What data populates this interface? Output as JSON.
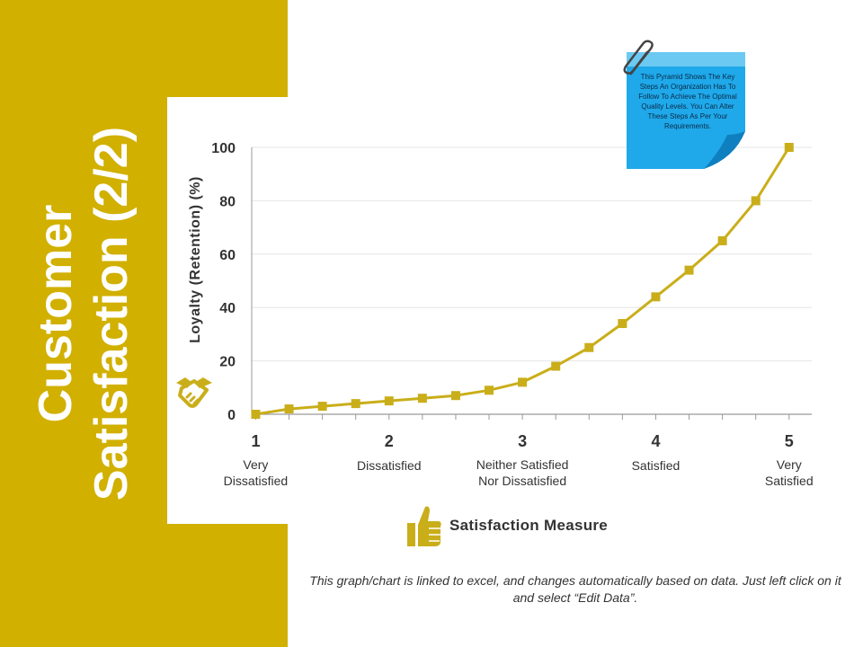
{
  "slide": {
    "title_line1": "Customer",
    "title_line2": "Satisfaction (2/2)",
    "footer_note": "This graph/chart is linked to excel, and changes automatically based on data. Just left click on it and select “Edit Data”.",
    "sticky_note": "This Pyramid Shows The Key Steps An Organization Has To Follow To Achieve The Optimal Quality Levels. You Can Alter These Steps As Per Your Requirements.",
    "accent_color": "#d1b000",
    "line_color": "#c9ae1a",
    "note_color": "#1fa9ea",
    "icons": {
      "y_axis": "handshake-icon",
      "x_axis": "thumbs-up-icon",
      "note": "paperclip-icon"
    }
  },
  "chart_data": {
    "type": "line",
    "title": "",
    "xlabel": "Satisfaction Measure",
    "ylabel": "Loyalty (Retention) (%)",
    "xlim": [
      0.97,
      5.17
    ],
    "ylim": [
      0,
      100
    ],
    "yticks": [
      0,
      20,
      40,
      60,
      80,
      100
    ],
    "xticks": [
      {
        "value": 1,
        "label": "1",
        "name": "Very Dissatisfied"
      },
      {
        "value": 2,
        "label": "2",
        "name": "Dissatisfied"
      },
      {
        "value": 3,
        "label": "3",
        "name": "Neither Satisfied Nor Dissatisfied"
      },
      {
        "value": 4,
        "label": "4",
        "name": "Satisfied"
      },
      {
        "value": 5,
        "label": "5",
        "name": "Very Satisfied"
      }
    ],
    "grid": true,
    "legend": "none",
    "series": [
      {
        "x": [
          1,
          1.25,
          1.5,
          1.75,
          2,
          2.25,
          2.5,
          2.75,
          3,
          3.25,
          3.5,
          3.75,
          4,
          4.25,
          4.5,
          4.75,
          5
        ],
        "y": [
          0,
          2,
          3,
          4,
          5,
          6,
          7,
          9,
          12,
          18,
          25,
          34,
          44,
          54,
          65,
          80,
          100
        ]
      }
    ]
  }
}
